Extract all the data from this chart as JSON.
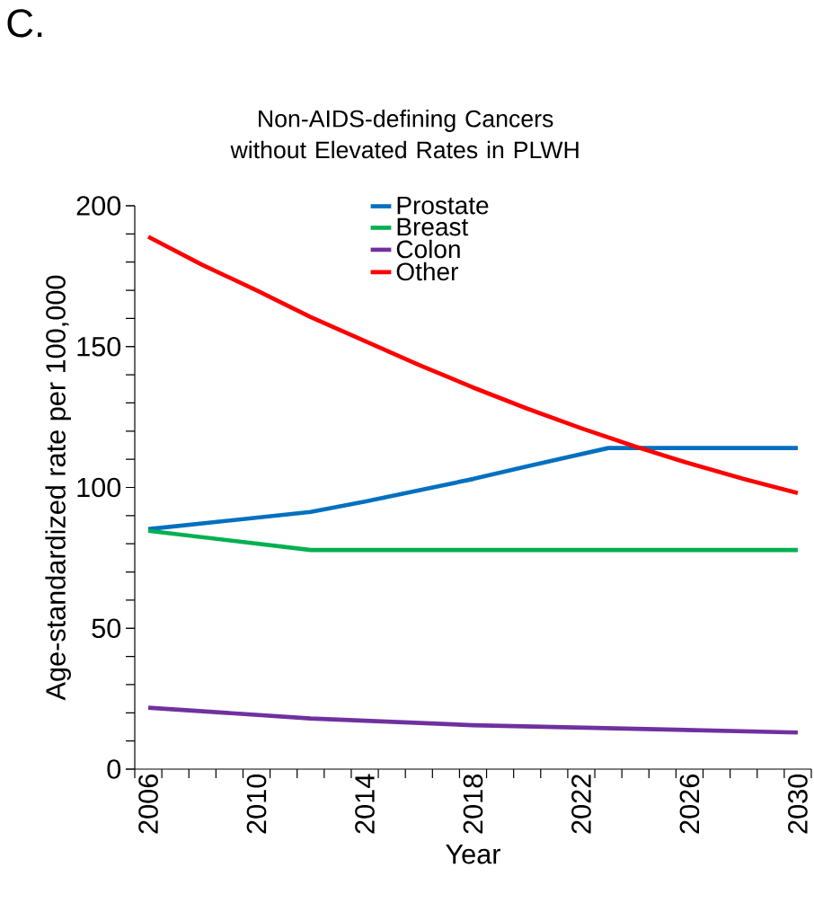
{
  "chart_data": {
    "type": "line",
    "title": "Non-AIDS-defining Cancers without Elevated Rates in PLWH",
    "xlabel": "Year",
    "ylabel": "Age-standardized rate per 100,000",
    "annotations": [
      "C."
    ],
    "xlim": [
      2005.5,
      2030.5
    ],
    "ylim": [
      0,
      200
    ],
    "xticks": [
      2006,
      2010,
      2014,
      2018,
      2022,
      2026,
      2030
    ],
    "yticks": [
      0,
      50,
      100,
      150,
      200
    ],
    "series": [
      {
        "name": "Prostate",
        "color": "#0070c0",
        "x": [
          2006,
          2012,
          2014,
          2016,
          2018,
          2020,
          2023,
          2030
        ],
        "values": [
          85.2,
          91.3,
          95,
          99,
          103,
          107.5,
          114,
          114
        ]
      },
      {
        "name": "Breast",
        "color": "#00b050",
        "x": [
          2006,
          2012,
          2030
        ],
        "values": [
          84.6,
          77.8,
          77.8
        ]
      },
      {
        "name": "Colon",
        "color": "#7030a0",
        "x": [
          2006,
          2012,
          2018,
          2024,
          2030
        ],
        "values": [
          21.8,
          18,
          15.6,
          14.3,
          13
        ]
      },
      {
        "name": "Other",
        "color": "#ff0000",
        "x": [
          2006,
          2008,
          2010,
          2012,
          2014,
          2016,
          2018,
          2020,
          2022,
          2024,
          2026,
          2028,
          2030
        ],
        "values": [
          189,
          179,
          170,
          160.5,
          152,
          143.5,
          135.5,
          128,
          121,
          114.5,
          108.5,
          103,
          98
        ]
      }
    ],
    "legend": "top",
    "grid": false,
    "marker": "none",
    "line_style": "solid"
  }
}
